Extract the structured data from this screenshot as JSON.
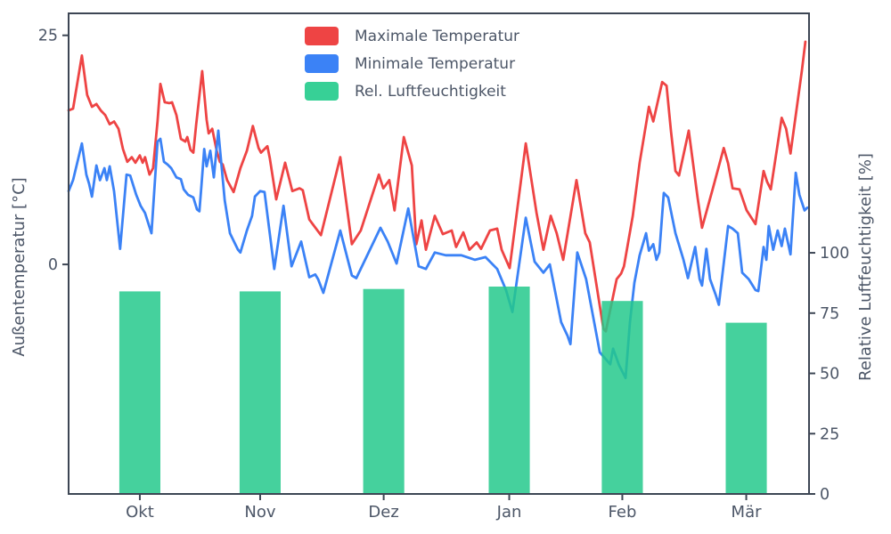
{
  "chart_data": {
    "type": "line+bar",
    "title": "",
    "x_axis": {
      "tick_labels": [
        "Okt",
        "Nov",
        "Dez",
        "Jan",
        "Feb",
        "Mär"
      ],
      "tick_days": [
        17.7,
        47.6,
        78.3,
        109.5,
        137.6,
        168.4
      ],
      "day_range": [
        0,
        184
      ],
      "grid": false
    },
    "left_axis": {
      "label": "Außentemperatur [°C]",
      "ticks": [
        0,
        25
      ],
      "lim": [
        -25.05,
        27.4
      ]
    },
    "right_axis": {
      "label": "Relative Luftfeuchtigkeit [%]",
      "ticks": [
        0,
        25,
        50,
        75,
        100
      ],
      "lim": [
        0,
        199.3
      ]
    },
    "legend": [
      {
        "label": "Maximale Temperatur",
        "color": "#ee4444"
      },
      {
        "label": "Minimale Temperatur",
        "color": "#3b82f6"
      },
      {
        "label": "Rel. Luftfeuchtigkeit",
        "color": "#37d096"
      }
    ],
    "series": [
      {
        "name": "Maximale Temperatur",
        "kind": "line",
        "color": "#ee4444",
        "unit": "°C",
        "points": [
          [
            0,
            16.8
          ],
          [
            1.1,
            17
          ],
          [
            3.3,
            22.8
          ],
          [
            4.6,
            18.5
          ],
          [
            5.8,
            17.2
          ],
          [
            6.9,
            17.5
          ],
          [
            8,
            16.8
          ],
          [
            9.1,
            16.3
          ],
          [
            10.2,
            15.3
          ],
          [
            11.3,
            15.6
          ],
          [
            12.4,
            14.8
          ],
          [
            13.5,
            12.6
          ],
          [
            14.6,
            11.2
          ],
          [
            15.7,
            11.7
          ],
          [
            16.6,
            11.1
          ],
          [
            17.7,
            11.9
          ],
          [
            18.4,
            11.1
          ],
          [
            19,
            11.7
          ],
          [
            20.1,
            9.8
          ],
          [
            21,
            10.5
          ],
          [
            22.1,
            15.6
          ],
          [
            22.8,
            19.7
          ],
          [
            23.9,
            17.7
          ],
          [
            25,
            17.6
          ],
          [
            25.7,
            17.7
          ],
          [
            26.8,
            16.3
          ],
          [
            27.9,
            13.7
          ],
          [
            29,
            13.4
          ],
          [
            29.5,
            13.9
          ],
          [
            30.3,
            12.5
          ],
          [
            31,
            12.2
          ],
          [
            31.7,
            15.3
          ],
          [
            33.2,
            21.1
          ],
          [
            34.3,
            15.8
          ],
          [
            34.8,
            14.3
          ],
          [
            35.7,
            14.8
          ],
          [
            36.8,
            12.4
          ],
          [
            37.6,
            11.2
          ],
          [
            38.3,
            10.9
          ],
          [
            39.4,
            9.2
          ],
          [
            41,
            7.9
          ],
          [
            42.7,
            10.5
          ],
          [
            44.3,
            12.4
          ],
          [
            45.8,
            15.1
          ],
          [
            47.2,
            12.7
          ],
          [
            47.8,
            12.2
          ],
          [
            49.4,
            12.9
          ],
          [
            50,
            11.6
          ],
          [
            51.6,
            7.1
          ],
          [
            53.8,
            11.1
          ],
          [
            55.6,
            8
          ],
          [
            57.4,
            8.3
          ],
          [
            58.2,
            8.1
          ],
          [
            59.8,
            4.9
          ],
          [
            62.7,
            3.2
          ],
          [
            67.5,
            11.7
          ],
          [
            70.4,
            2.2
          ],
          [
            72.6,
            3.7
          ],
          [
            77.1,
            9.8
          ],
          [
            78.2,
            8.3
          ],
          [
            79.7,
            9.2
          ],
          [
            81,
            5.9
          ],
          [
            83.3,
            13.9
          ],
          [
            85.3,
            10.8
          ],
          [
            86.4,
            2.2
          ],
          [
            87.7,
            4.8
          ],
          [
            88.8,
            1.6
          ],
          [
            91,
            5.3
          ],
          [
            93,
            3.3
          ],
          [
            95.2,
            3.7
          ],
          [
            96.3,
            1.9
          ],
          [
            98.1,
            3.5
          ],
          [
            99.6,
            1.6
          ],
          [
            101.4,
            2.4
          ],
          [
            102.5,
            1.7
          ],
          [
            104.7,
            3.7
          ],
          [
            106.5,
            3.9
          ],
          [
            107.6,
            1.6
          ],
          [
            109.6,
            -0.4
          ],
          [
            113.6,
            13.2
          ],
          [
            116.3,
            5.6
          ],
          [
            118,
            1.6
          ],
          [
            119.8,
            5.3
          ],
          [
            121.3,
            3.4
          ],
          [
            122.9,
            0.5
          ],
          [
            126.2,
            9.2
          ],
          [
            128.4,
            3.4
          ],
          [
            129.5,
            2.4
          ],
          [
            132.9,
            -7
          ],
          [
            133.5,
            -7.3
          ],
          [
            136.2,
            -1.6
          ],
          [
            137.3,
            -1
          ],
          [
            138,
            -0.2
          ],
          [
            140.2,
            5.3
          ],
          [
            141.9,
            11.1
          ],
          [
            144.2,
            17.2
          ],
          [
            145.3,
            15.6
          ],
          [
            147.5,
            19.9
          ],
          [
            148.6,
            19.5
          ],
          [
            149.7,
            14.5
          ],
          [
            150.8,
            10.2
          ],
          [
            151.7,
            9.7
          ],
          [
            154.1,
            14.6
          ],
          [
            156.3,
            7.3
          ],
          [
            157.4,
            4
          ],
          [
            160.1,
            8.3
          ],
          [
            162.8,
            12.7
          ],
          [
            163.9,
            11
          ],
          [
            165,
            8.3
          ],
          [
            166.7,
            8.2
          ],
          [
            168.5,
            5.9
          ],
          [
            170.7,
            4.4
          ],
          [
            172.7,
            10.2
          ],
          [
            173.6,
            9
          ],
          [
            174.5,
            8.2
          ],
          [
            177.2,
            16
          ],
          [
            178.3,
            14.8
          ],
          [
            179.4,
            12.1
          ],
          [
            182.2,
            21.1
          ],
          [
            183.1,
            24.3
          ]
        ]
      },
      {
        "name": "Minimale Temperatur",
        "kind": "line",
        "color": "#3b82f6",
        "unit": "°C",
        "points": [
          [
            0,
            8
          ],
          [
            1.1,
            9.2
          ],
          [
            3.3,
            13.2
          ],
          [
            4.4,
            9.8
          ],
          [
            5.1,
            8.8
          ],
          [
            5.8,
            7.4
          ],
          [
            6.9,
            10.8
          ],
          [
            7.8,
            9.2
          ],
          [
            8.9,
            10.5
          ],
          [
            9.5,
            9.2
          ],
          [
            10.2,
            10.7
          ],
          [
            11.3,
            8
          ],
          [
            12.8,
            1.7
          ],
          [
            14.4,
            9.8
          ],
          [
            15.3,
            9.7
          ],
          [
            16.8,
            7.6
          ],
          [
            17.9,
            6.4
          ],
          [
            19,
            5.6
          ],
          [
            20.6,
            3.4
          ],
          [
            22.1,
            13.4
          ],
          [
            22.8,
            13.7
          ],
          [
            23.7,
            11.2
          ],
          [
            24.6,
            10.9
          ],
          [
            25.5,
            10.5
          ],
          [
            26.8,
            9.5
          ],
          [
            27.9,
            9.3
          ],
          [
            28.6,
            8.2
          ],
          [
            29.7,
            7.6
          ],
          [
            31,
            7.3
          ],
          [
            31.9,
            6
          ],
          [
            32.5,
            5.8
          ],
          [
            33,
            8.5
          ],
          [
            33.7,
            12.6
          ],
          [
            34.3,
            10.7
          ],
          [
            35.2,
            12.4
          ],
          [
            36.1,
            9.5
          ],
          [
            37.2,
            14.6
          ],
          [
            38.8,
            7
          ],
          [
            40.1,
            3.4
          ],
          [
            42.1,
            1.6
          ],
          [
            42.7,
            1.3
          ],
          [
            44.3,
            3.7
          ],
          [
            45.6,
            5.3
          ],
          [
            46.3,
            7.4
          ],
          [
            47.6,
            8
          ],
          [
            48.7,
            7.9
          ],
          [
            51.1,
            -0.5
          ],
          [
            53.4,
            6.4
          ],
          [
            55.4,
            -0.2
          ],
          [
            57.8,
            2.5
          ],
          [
            59.8,
            -1.4
          ],
          [
            61.3,
            -1.1
          ],
          [
            62,
            -1.6
          ],
          [
            63.3,
            -3.1
          ],
          [
            67.5,
            3.7
          ],
          [
            70.4,
            -1.2
          ],
          [
            71.5,
            -1.5
          ],
          [
            77.5,
            4
          ],
          [
            79.3,
            2.5
          ],
          [
            81.5,
            0.1
          ],
          [
            84.4,
            6.1
          ],
          [
            87,
            -0.2
          ],
          [
            88.8,
            -0.5
          ],
          [
            91,
            1.3
          ],
          [
            93.7,
            1
          ],
          [
            97.6,
            1
          ],
          [
            101,
            0.5
          ],
          [
            103.6,
            0.8
          ],
          [
            106.5,
            -0.5
          ],
          [
            108.7,
            -2.8
          ],
          [
            110.3,
            -5.2
          ],
          [
            113.6,
            5.1
          ],
          [
            115.8,
            0.3
          ],
          [
            118,
            -0.9
          ],
          [
            119.6,
            0
          ],
          [
            122.4,
            -6.3
          ],
          [
            124,
            -7.8
          ],
          [
            124.7,
            -8.7
          ],
          [
            126.4,
            1.3
          ],
          [
            128.6,
            -1.6
          ],
          [
            132,
            -9.6
          ],
          [
            134.6,
            -10.9
          ],
          [
            135.3,
            -9.2
          ],
          [
            136.8,
            -11
          ],
          [
            138.4,
            -12.4
          ],
          [
            139.5,
            -6.3
          ],
          [
            140.6,
            -2
          ],
          [
            141.9,
            1
          ],
          [
            143.5,
            3.4
          ],
          [
            144.2,
            1.5
          ],
          [
            145.3,
            2.2
          ],
          [
            146.1,
            0.5
          ],
          [
            146.8,
            1.3
          ],
          [
            147.9,
            7.8
          ],
          [
            149,
            7.3
          ],
          [
            150.8,
            3.4
          ],
          [
            152.8,
            0.5
          ],
          [
            153.9,
            -1.5
          ],
          [
            155.7,
            1.9
          ],
          [
            156.8,
            -1.6
          ],
          [
            157.4,
            -2.3
          ],
          [
            158.5,
            1.7
          ],
          [
            159.4,
            -1.6
          ],
          [
            160.8,
            -3.3
          ],
          [
            161.6,
            -4.4
          ],
          [
            163.9,
            4.2
          ],
          [
            165,
            3.9
          ],
          [
            166.3,
            3.4
          ],
          [
            167.4,
            -0.9
          ],
          [
            169,
            -1.6
          ],
          [
            170.7,
            -2.8
          ],
          [
            171.4,
            -2.9
          ],
          [
            172.7,
            1.9
          ],
          [
            173.4,
            0.5
          ],
          [
            174,
            4.2
          ],
          [
            175.1,
            1.6
          ],
          [
            176.2,
            3.7
          ],
          [
            177.2,
            2
          ],
          [
            178,
            3.9
          ],
          [
            179.4,
            1.1
          ],
          [
            180.7,
            10
          ],
          [
            181.6,
            7.6
          ],
          [
            182.9,
            5.9
          ],
          [
            183.6,
            6.2
          ]
        ]
      },
      {
        "name": "Rel. Luftfeuchtigkeit",
        "kind": "bar",
        "color": "#25c98c",
        "fill_opacity": 0.85,
        "unit": "%",
        "bar_width_days": 10.2,
        "values": [
          {
            "month": "Okt",
            "day": 17.7,
            "value": 84
          },
          {
            "month": "Nov",
            "day": 47.6,
            "value": 84
          },
          {
            "month": "Dez",
            "day": 78.3,
            "value": 85
          },
          {
            "month": "Jan",
            "day": 109.5,
            "value": 86
          },
          {
            "month": "Feb",
            "day": 137.6,
            "value": 80
          },
          {
            "month": "Mär",
            "day": 168.4,
            "value": 71
          }
        ]
      }
    ],
    "colors": {
      "spine": "#3d4654",
      "tick_text": "#4c5667",
      "background": "#ffffff"
    }
  }
}
